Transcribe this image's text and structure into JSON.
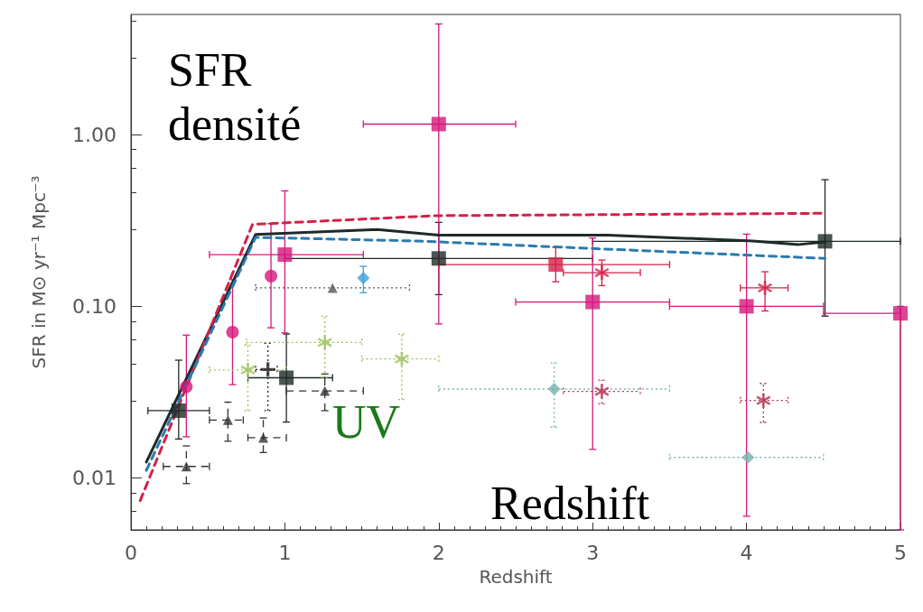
{
  "chart_data": {
    "type": "scatter",
    "xlabel": "Redshift",
    "ylabel": "SFR in M⊙ yr⁻¹ Mpc⁻³",
    "xlim": [
      0,
      5
    ],
    "xticks": [
      0,
      1,
      2,
      3,
      4,
      5
    ],
    "ylim": [
      0.005,
      5
    ],
    "yticks": [
      {
        "value": 0.01,
        "label": "0.01"
      },
      {
        "value": 0.1,
        "label": "0.10"
      },
      {
        "value": 1,
        "label": "1.00"
      }
    ],
    "log": "y",
    "grid": false,
    "annotations": [
      "SFR densité",
      "UV",
      "Redshift"
    ],
    "series": [
      {
        "type": "line",
        "color": "#1e2a28",
        "line_style": "solid",
        "x": [
          0.1,
          0.81,
          1.6,
          2.0,
          3.1,
          4.04,
          4.34,
          4.51
        ],
        "values": [
          0.0124,
          0.262,
          0.28,
          0.26,
          0.26,
          0.24,
          0.229,
          0.237
        ]
      },
      {
        "type": "line",
        "color": "#d42048",
        "line_style": "dashed",
        "x": [
          0.06,
          0.79,
          1.98,
          4.51
        ],
        "values": [
          0.0074,
          0.3,
          0.337,
          0.348
        ]
      },
      {
        "type": "line",
        "color": "#2a7ab0",
        "line_style": "dashed",
        "x": [
          0.1,
          0.81,
          1.86,
          4.51
        ],
        "values": [
          0.0111,
          0.252,
          0.24,
          0.19
        ]
      },
      {
        "color": "#1e2a28",
        "marker": "square",
        "line_style": "solid",
        "x": [
          0.31,
          1.01,
          2.0,
          4.51
        ],
        "values": [
          0.0247,
          0.0384,
          0.19,
          0.239
        ],
        "errors": [
          [
            0.0169,
            0.0486
          ],
          [
            0.0212,
            0.069
          ],
          [
            0.117,
            0.308
          ],
          [
            0.0877,
            0.546
          ]
        ],
        "xerrors": [
          [
            0.11,
            0.51
          ],
          [
            0.76,
            1.31
          ],
          [
            1.0,
            3.0
          ],
          [
            3.0,
            5.0
          ]
        ]
      },
      {
        "color": "#d4177a",
        "marker": "square",
        "line_style": "solid",
        "x": [
          1.0,
          2.0,
          3.0,
          4.0,
          5.0
        ],
        "values": [
          0.2,
          1.15,
          0.106,
          0.1,
          0.091
        ],
        "errors": [
          [
            0.07,
            0.47
          ],
          [
            0.079,
            4.4
          ],
          [
            0.0147,
            0.25
          ],
          [
            0.006,
            0.263
          ],
          [
            0.005,
            0.1
          ]
        ],
        "xerrors": [
          [
            0.51,
            1.51
          ],
          [
            1.51,
            2.5
          ],
          [
            2.5,
            3.5
          ],
          [
            3.5,
            4.5
          ],
          [
            4.5,
            5.0
          ]
        ]
      },
      {
        "color": "#d4177a",
        "marker": "circle",
        "line_style": "solid",
        "x": [
          0.36,
          0.66,
          0.91
        ],
        "values": [
          0.034,
          0.0708,
          0.15
        ],
        "errors": [
          [
            0.0174,
            0.068
          ],
          [
            0.035,
            0.143
          ],
          [
            0.075,
            0.303
          ]
        ]
      },
      {
        "color": "#3ba3d8",
        "marker": "diamond",
        "line_style": "solid",
        "x": [
          1.51
        ],
        "values": [
          0.146
        ],
        "errors": [
          [
            0.12,
            0.171
          ]
        ]
      },
      {
        "color": "#555555",
        "marker": "triangle",
        "line_style": "dotted",
        "x": [
          1.31
        ],
        "values": [
          0.128
        ],
        "xerrors": [
          [
            0.81,
            1.81
          ]
        ]
      },
      {
        "color": "#9cbf5a",
        "marker": "star",
        "line_style": "dotted",
        "x": [
          0.76,
          1.26,
          1.76
        ],
        "values": [
          0.0426,
          0.0617,
          0.0494
        ],
        "errors": [
          [
            0.0247,
            0.0594
          ],
          [
            0.0386,
            0.0875
          ],
          [
            0.0287,
            0.069
          ]
        ],
        "xerrors": [
          [
            0.51,
            1.01
          ],
          [
            0.75,
            1.5
          ],
          [
            1.5,
            2.0
          ]
        ]
      },
      {
        "color": "#333333",
        "marker": "triangle",
        "line_style": "dashed",
        "x": [
          0.36,
          0.63,
          0.86,
          1.26
        ],
        "values": [
          0.0117,
          0.0218,
          0.0172,
          0.0322
        ],
        "errors": [
          [
            0.0093,
            0.0154
          ],
          [
            0.0164,
            0.0277
          ],
          [
            0.0141,
            0.0224
          ],
          [
            0.0247,
            0.0404
          ]
        ],
        "xerrors": [
          [
            0.21,
            0.51
          ],
          [
            0.51,
            0.73
          ],
          [
            0.76,
            1.01
          ],
          [
            1.01,
            1.51
          ]
        ]
      },
      {
        "color": "#222222",
        "marker": "cross",
        "line_style": "dotted",
        "x": [
          0.89
        ],
        "values": [
          0.0429
        ],
        "errors": [
          [
            0.0247,
            0.0609
          ]
        ],
        "xerrors": [
          [
            0.81,
            0.95
          ]
        ]
      },
      {
        "color": "#7ab0b0",
        "marker": "diamond",
        "line_style": "dotted",
        "x": [
          2.75,
          4.01
        ],
        "values": [
          0.033,
          0.0132
        ],
        "errors": [
          [
            0.0198,
            0.047
          ],
          null
        ],
        "xerrors": [
          [
            2.0,
            3.5
          ],
          [
            3.5,
            4.5
          ]
        ]
      },
      {
        "color": "#b03050",
        "marker": "star",
        "line_style": "dotted",
        "x": [
          3.06,
          4.11
        ],
        "values": [
          0.032,
          0.0283
        ],
        "errors": [
          [
            0.0271,
            0.0372
          ],
          [
            0.0211,
            0.0356
          ]
        ],
        "xerrors": [
          [
            2.81,
            3.31
          ],
          [
            3.96,
            4.27
          ]
        ]
      },
      {
        "color": "#d42048",
        "marker": "square",
        "line_style": "solid",
        "x": [
          2.76
        ],
        "values": [
          0.175
        ],
        "errors": [
          [
            0.139,
            0.221
          ]
        ],
        "xerrors": [
          [
            2.0,
            3.5
          ]
        ]
      },
      {
        "color": "#d42048",
        "marker": "star",
        "line_style": "solid",
        "x": [
          3.06,
          4.12
        ],
        "values": [
          0.157,
          0.128
        ],
        "errors": [
          [
            0.132,
            0.186
          ],
          [
            0.094,
            0.159
          ]
        ],
        "xerrors": [
          [
            2.81,
            3.31
          ],
          [
            3.96,
            4.27
          ]
        ]
      }
    ]
  }
}
